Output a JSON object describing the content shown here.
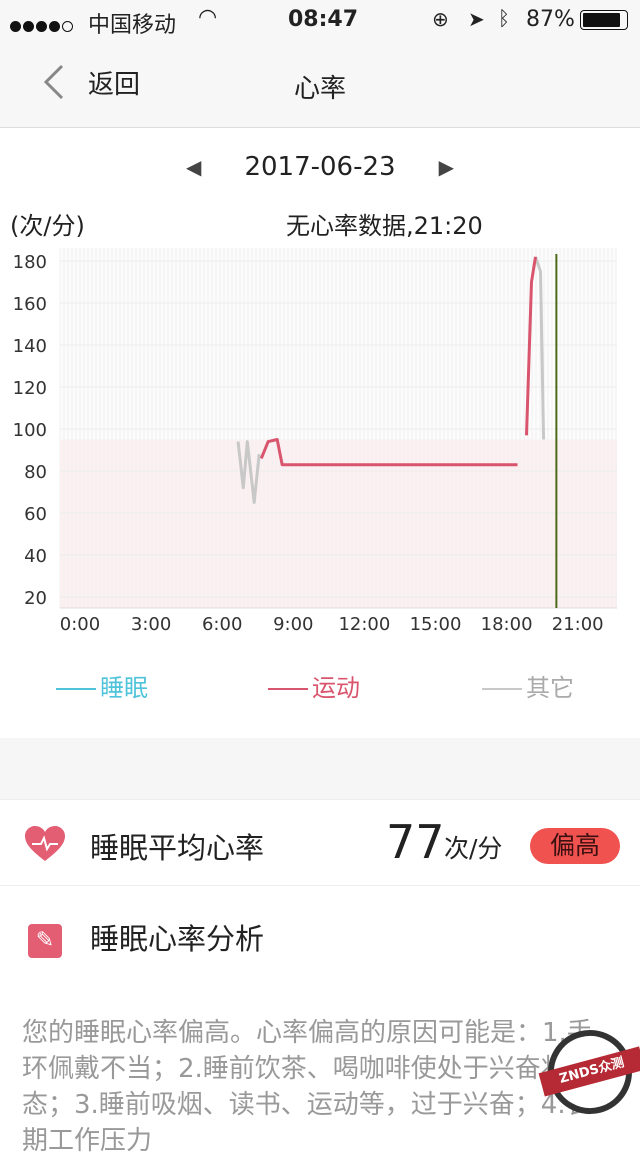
{
  "status_bar": {
    "carrier": "中国移动",
    "time": "08:47",
    "battery": "87%",
    "signal_bars": 4,
    "signal_total": 5,
    "icons": [
      "wifi-icon",
      "rotation-lock-icon",
      "location-arrow-icon",
      "bluetooth-icon",
      "battery-icon"
    ]
  },
  "nav": {
    "back_label": "返回",
    "title": "心率"
  },
  "date_nav": {
    "date": "2017-06-23"
  },
  "chart_header": {
    "unit": "(次/分)",
    "info": "无心率数据,21:20"
  },
  "chart_data": {
    "type": "line",
    "ylabel": "(次/分)",
    "y_ticks": [
      180,
      160,
      140,
      120,
      100,
      80,
      60,
      40,
      20
    ],
    "x_ticks": [
      "0:00",
      "3:00",
      "6:00",
      "9:00",
      "12:00",
      "15:00",
      "18:00",
      "21:00"
    ],
    "x_unit": "hour",
    "ylim": [
      14,
      186
    ],
    "xlim": [
      -0.85,
      22.7
    ],
    "grid": true,
    "reference_band_max": 95,
    "cursor_hour": 20.1,
    "series": [
      {
        "name": "其它",
        "color": "#c8c8c8",
        "segments": [
          [
            [
              6.67,
              94
            ],
            [
              6.89,
              72
            ],
            [
              7.06,
              94
            ],
            [
              7.35,
              65
            ],
            [
              7.56,
              88
            ]
          ],
          [
            [
              19.22,
              182
            ],
            [
              19.43,
              175
            ],
            [
              19.56,
              95
            ]
          ]
        ]
      },
      {
        "name": "运动",
        "color": "#d9546d",
        "segments": [
          [
            [
              7.65,
              86
            ],
            [
              7.94,
              94
            ],
            [
              8.32,
              95
            ],
            [
              8.53,
              83
            ],
            [
              18.46,
              83
            ]
          ],
          [
            [
              18.84,
              97
            ],
            [
              19.05,
              170
            ],
            [
              19.22,
              182
            ]
          ]
        ]
      },
      {
        "name": "睡眠",
        "color": "#4fc3d9",
        "segments": []
      }
    ]
  },
  "legend": [
    {
      "label": "睡眠",
      "color": "#4fc3d9"
    },
    {
      "label": "运动",
      "color": "#d9546d"
    },
    {
      "label": "其它",
      "color": "#c8c8c8"
    }
  ],
  "sleep_avg": {
    "label": "睡眠平均心率",
    "value": "77",
    "unit": "次/分",
    "badge": "偏高",
    "badge_color": "#f0524f"
  },
  "analysis": {
    "label": "睡眠心率分析",
    "text": "您的睡眠心率偏高。心率偏高的原因可能是：1.手环佩戴不当；2.睡前饮茶、喝咖啡使处于兴奋状态；3.睡前吸烟、读书、运动等，过于兴奋；4.长期工作压力"
  },
  "watermark": "ZNDS众测"
}
